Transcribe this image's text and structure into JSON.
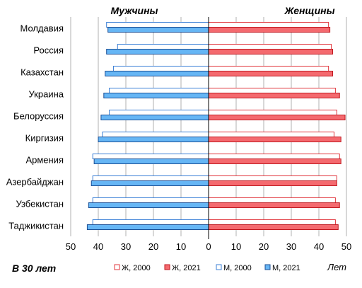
{
  "chart_data": {
    "type": "bar",
    "orientation": "horizontal-butterfly",
    "subtitle": "В 30 лет",
    "left_panel_title": "Мужчины",
    "right_panel_title": "Женщины",
    "unit_label": "Лет",
    "categories": [
      "Молдавия",
      "Россия",
      "Казахстан",
      "Украина",
      "Белоруссия",
      "Киргизия",
      "Армения",
      "Азербайджан",
      "Узбекистан",
      "Таджикистан"
    ],
    "x_ticks": [
      "50",
      "40",
      "30",
      "20",
      "10",
      "0",
      "10",
      "20",
      "30",
      "40",
      "50"
    ],
    "xlim": [
      -50,
      50
    ],
    "grid": true,
    "legend_position": "bottom",
    "series": [
      {
        "name": "Ж, 2000",
        "side": "right",
        "fill": "#ffffff",
        "stroke": "#e0343b",
        "values": [
          43.5,
          44.5,
          43.5,
          46,
          46.5,
          45.5,
          47.5,
          46.5,
          46,
          46
        ]
      },
      {
        "name": "Ж, 2021",
        "side": "right",
        "fill": "#f46a6f",
        "stroke": "#c0181f",
        "values": [
          44,
          45,
          45,
          47.5,
          49.5,
          48,
          48,
          46.5,
          47.5,
          47
        ]
      },
      {
        "name": "М, 2000",
        "side": "left",
        "fill": "#ffffff",
        "stroke": "#3a7fd6",
        "values": [
          37,
          33,
          34.5,
          36,
          36,
          38.5,
          42,
          42,
          42,
          42
        ]
      },
      {
        "name": "М, 2021",
        "side": "left",
        "fill": "#66b6f5",
        "stroke": "#1c4f95",
        "values": [
          36.5,
          37,
          37.5,
          38,
          39,
          40,
          41.5,
          42.5,
          43.5,
          44
        ]
      }
    ],
    "colors": {
      "grid": "#b0b0b0",
      "zero_line": "#000000"
    }
  }
}
